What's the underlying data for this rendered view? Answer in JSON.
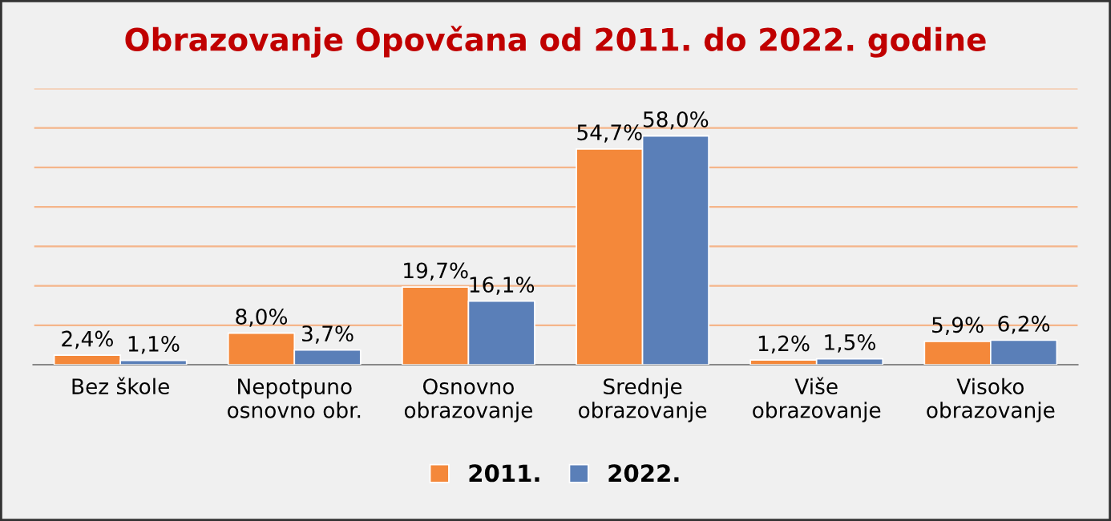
{
  "chart_data": {
    "type": "bar",
    "title": "Obrazovanje Opovčana od 2011. do 2022. godine",
    "categories": [
      "Bez škole",
      "Nepotpuno\nosnovno obr.",
      "Osnovno\nobrazovanje",
      "Srednje\nobrazovanje",
      "Više\nobrazovanje",
      "Visoko\nobrazovanje"
    ],
    "series": [
      {
        "name": "2011.",
        "color": "#f4883a",
        "values": [
          2.4,
          8.0,
          19.7,
          54.7,
          1.2,
          5.9
        ],
        "value_labels": [
          "2,4%",
          "8,0%",
          "19,7%",
          "54,7%",
          "1,2%",
          "5,9%"
        ]
      },
      {
        "name": "2022.",
        "color": "#5a7fb8",
        "values": [
          1.1,
          3.7,
          16.1,
          58.0,
          1.5,
          6.2
        ],
        "value_labels": [
          "1,1%",
          "3,7%",
          "16,1%",
          "58,0%",
          "1,5%",
          "6,2%"
        ]
      }
    ],
    "ylim": [
      0,
      70
    ],
    "yticks": [
      {
        "value": 0,
        "label": null
      },
      {
        "value": 10,
        "label": null
      },
      {
        "value": 20,
        "label": null
      },
      {
        "value": 30,
        "label": null
      },
      {
        "value": 40,
        "label": null
      },
      {
        "value": 50,
        "label": null
      },
      {
        "value": 60,
        "label": null
      },
      {
        "value": 70,
        "label": null
      }
    ],
    "grid": "y",
    "legend": "bottom"
  }
}
